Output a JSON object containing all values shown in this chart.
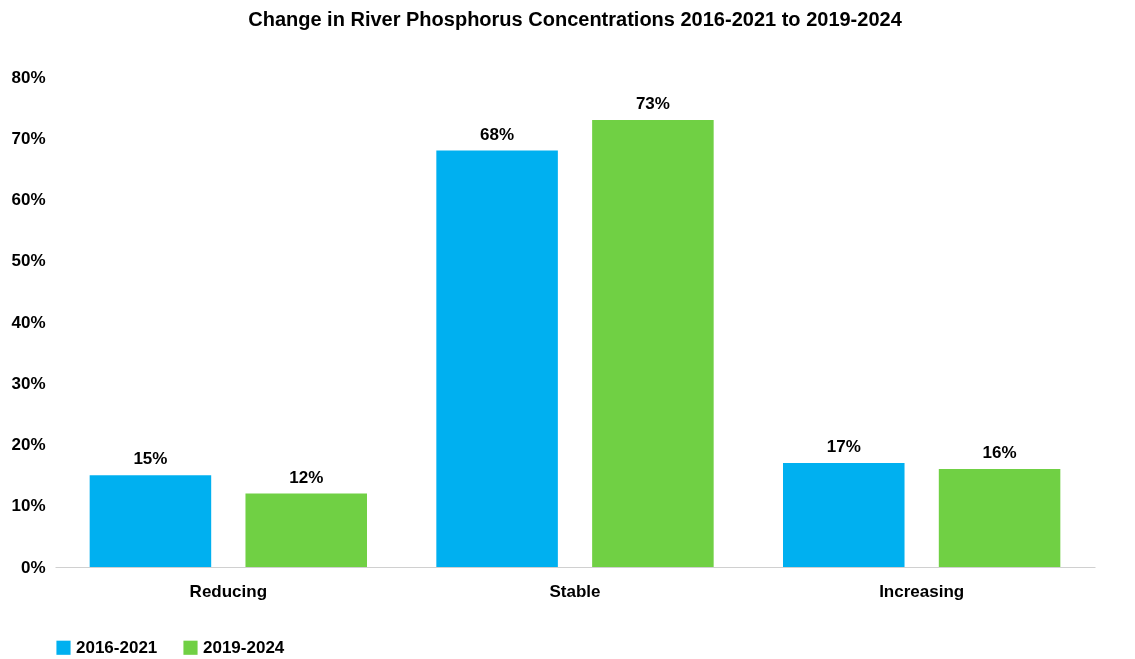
{
  "chart_data": {
    "type": "bar",
    "title": "Change in River Phosphorus Concentrations 2016-2021 to 2019-2024",
    "categories": [
      "Reducing",
      "Stable",
      "Increasing"
    ],
    "series": [
      {
        "name": "2016-2021",
        "color": "#00b0f0",
        "values": [
          15,
          68,
          17
        ],
        "value_labels": [
          "15%",
          "68%",
          "17%"
        ]
      },
      {
        "name": "2019-2024",
        "color": "#70d044",
        "values": [
          12,
          73,
          16
        ],
        "value_labels": [
          "12%",
          "73%",
          "16%"
        ]
      }
    ],
    "ylim": [
      0,
      80
    ],
    "yticks": [
      {
        "value": 0,
        "label": "0%"
      },
      {
        "value": 10,
        "label": "10%"
      },
      {
        "value": 20,
        "label": "20%"
      },
      {
        "value": 30,
        "label": "30%"
      },
      {
        "value": 40,
        "label": "40%"
      },
      {
        "value": 50,
        "label": "50%"
      },
      {
        "value": 60,
        "label": "60%"
      },
      {
        "value": 70,
        "label": "70%"
      },
      {
        "value": 80,
        "label": "80%"
      }
    ],
    "grid": false,
    "legend": "bottom"
  }
}
